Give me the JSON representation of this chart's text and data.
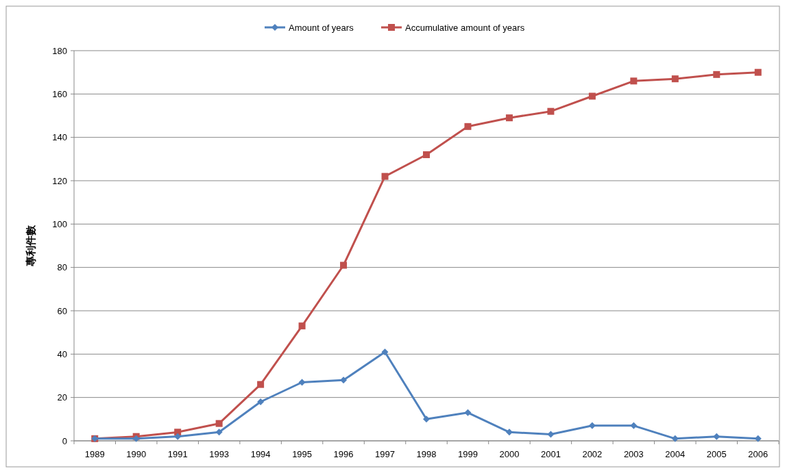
{
  "chart_data": {
    "type": "line",
    "ylabel": "專利件數",
    "categories": [
      "1989",
      "1990",
      "1991",
      "1993",
      "1994",
      "1995",
      "1996",
      "1997",
      "1998",
      "1999",
      "2000",
      "2001",
      "2002",
      "2003",
      "2004",
      "2005",
      "2006"
    ],
    "series": [
      {
        "name": "Amount of years",
        "color": "#4f81bd",
        "marker": "diamond",
        "values": [
          1,
          1,
          2,
          4,
          18,
          27,
          28,
          41,
          10,
          13,
          4,
          3,
          7,
          7,
          1,
          2,
          1
        ]
      },
      {
        "name": "Accumulative amount of years",
        "color": "#c0504d",
        "marker": "square",
        "values": [
          1,
          2,
          4,
          8,
          26,
          53,
          81,
          122,
          132,
          145,
          149,
          152,
          159,
          166,
          167,
          169,
          170
        ]
      }
    ],
    "ylim": [
      0,
      180
    ],
    "yticks": [
      0,
      20,
      40,
      60,
      80,
      100,
      120,
      140,
      160,
      180
    ],
    "grid": "y",
    "legend": "top",
    "line_style": "solid"
  }
}
